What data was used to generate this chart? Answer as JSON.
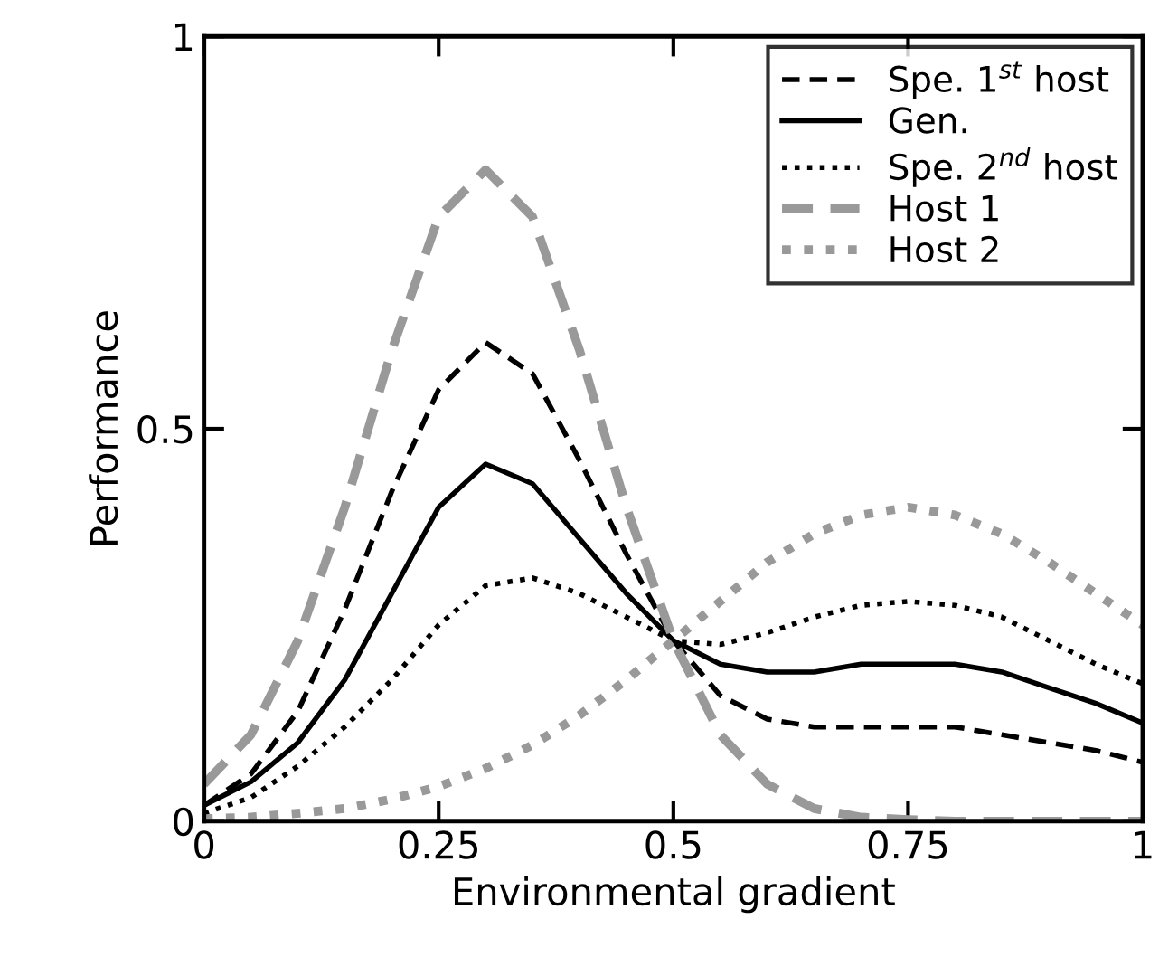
{
  "chart_data": {
    "type": "line",
    "xlabel": "Environmental gradient",
    "ylabel": "Performance",
    "x": [
      0,
      0.05,
      0.1,
      0.15,
      0.2,
      0.25,
      0.3,
      0.35,
      0.4,
      0.45,
      0.5,
      0.55,
      0.6,
      0.65,
      0.7,
      0.75,
      0.8,
      0.85,
      0.9,
      0.95,
      1
    ],
    "series": [
      {
        "name": "Spe. 1$^{st}$ host",
        "color": "#000000",
        "line_style": "dashed",
        "values": [
          0.02,
          0.06,
          0.14,
          0.27,
          0.42,
          0.55,
          0.61,
          0.57,
          0.46,
          0.34,
          0.23,
          0.16,
          0.13,
          0.12,
          0.12,
          0.12,
          0.12,
          0.11,
          0.1,
          0.09,
          0.075
        ]
      },
      {
        "name": "Gen.",
        "color": "#000000",
        "line_style": "solid",
        "values": [
          0.02,
          0.05,
          0.1,
          0.18,
          0.29,
          0.4,
          0.455,
          0.43,
          0.36,
          0.29,
          0.23,
          0.2,
          0.19,
          0.19,
          0.2,
          0.2,
          0.2,
          0.19,
          0.17,
          0.15,
          0.125
        ]
      },
      {
        "name": "Spe. 2$^{nd}$ host",
        "color": "#000000",
        "line_style": "dotted",
        "values": [
          0.01,
          0.03,
          0.07,
          0.12,
          0.18,
          0.25,
          0.3,
          0.31,
          0.29,
          0.26,
          0.23,
          0.225,
          0.24,
          0.26,
          0.275,
          0.28,
          0.275,
          0.26,
          0.23,
          0.2,
          0.175
        ]
      },
      {
        "name": "Host 1",
        "color": "#999999",
        "line_style": "dashed",
        "values": [
          0.047,
          0.11,
          0.23,
          0.4,
          0.6,
          0.77,
          0.83,
          0.77,
          0.6,
          0.4,
          0.23,
          0.11,
          0.047,
          0.016,
          0.005,
          0.002,
          0,
          0,
          0,
          0,
          0
        ]
      },
      {
        "name": "Host 2",
        "color": "#999999",
        "line_style": "dotted",
        "values": [
          0.003,
          0.005,
          0.01,
          0.016,
          0.028,
          0.044,
          0.067,
          0.097,
          0.135,
          0.18,
          0.23,
          0.28,
          0.33,
          0.366,
          0.39,
          0.4,
          0.39,
          0.366,
          0.33,
          0.29,
          0.25
        ]
      }
    ],
    "xlim": [
      0,
      1
    ],
    "ylim": [
      0,
      1
    ],
    "xticks": [
      0,
      0.25,
      0.5,
      0.75,
      1
    ],
    "yticks": [
      0,
      0.5,
      1
    ],
    "legend": "top right",
    "grid": false
  }
}
